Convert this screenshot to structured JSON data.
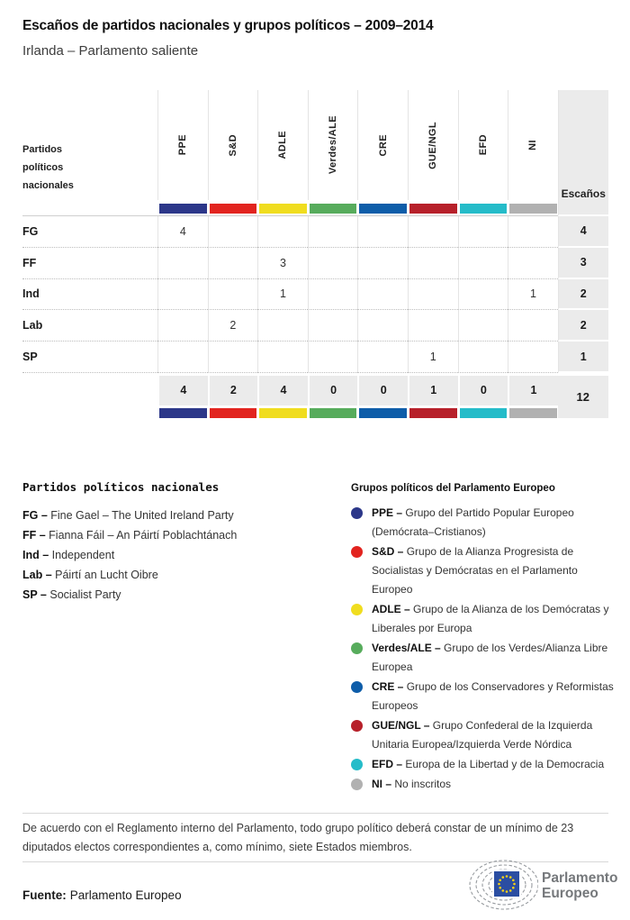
{
  "header": {
    "title": "Escaños de partidos nacionales y grupos políticos – 2009–2014",
    "subtitle": "Irlanda – Parlamento saliente"
  },
  "table": {
    "header_label": "Partidos políticos nacionales",
    "seats_label": "Escaños"
  },
  "chart_data": {
    "type": "table",
    "title": "Escaños de partidos nacionales y grupos políticos – 2009–2014",
    "subtitle": "Irlanda – Parlamento saliente",
    "groups": [
      {
        "code": "PPE",
        "color": "#2C3789"
      },
      {
        "code": "S&D",
        "color": "#E2241F"
      },
      {
        "code": "ADLE",
        "color": "#F0DD1F"
      },
      {
        "code": "Verdes/ALE",
        "color": "#57AC5C"
      },
      {
        "code": "CRE",
        "color": "#0E5DA9"
      },
      {
        "code": "GUE/NGL",
        "color": "#B7202A"
      },
      {
        "code": "EFD",
        "color": "#25BCC9"
      },
      {
        "code": "NI",
        "color": "#B1B1B1"
      }
    ],
    "rows": [
      {
        "party": "FG",
        "values": [
          4,
          null,
          null,
          null,
          null,
          null,
          null,
          null
        ],
        "total": 4
      },
      {
        "party": "FF",
        "values": [
          null,
          null,
          3,
          null,
          null,
          null,
          null,
          null
        ],
        "total": 3
      },
      {
        "party": "Ind",
        "values": [
          null,
          null,
          1,
          null,
          null,
          null,
          null,
          1
        ],
        "total": 2
      },
      {
        "party": "Lab",
        "values": [
          null,
          2,
          null,
          null,
          null,
          null,
          null,
          null
        ],
        "total": 2
      },
      {
        "party": "SP",
        "values": [
          null,
          null,
          null,
          null,
          null,
          1,
          null,
          null
        ],
        "total": 1
      }
    ],
    "totals": [
      4,
      2,
      4,
      0,
      0,
      1,
      0,
      1
    ],
    "grand_total": 12
  },
  "legend_parties": {
    "heading": "Partidos políticos nacionales",
    "items": [
      {
        "label": "FG –",
        "text": "Fine Gael – The United Ireland Party"
      },
      {
        "label": "FF –",
        "text": "Fianna Fáil – An Páirtí Poblachtánach"
      },
      {
        "label": "Ind –",
        "text": "Independent"
      },
      {
        "label": "Lab –",
        "text": "Páirtí an Lucht Oibre"
      },
      {
        "label": "SP –",
        "text": "Socialist Party"
      }
    ]
  },
  "legend_groups": {
    "heading": "Grupos políticos del Parlamento Europeo",
    "items": [
      {
        "label": "PPE –",
        "text": "Grupo del Partido Popular Europeo (Demócrata–Cristianos)"
      },
      {
        "label": "S&D –",
        "text": "Grupo de la Alianza Progresista de Socialistas y Demócratas en el Parlamento Europeo"
      },
      {
        "label": "ADLE –",
        "text": "Grupo de la Alianza de los Demócratas y Liberales por Europa"
      },
      {
        "label": "Verdes/ALE –",
        "text": "Grupo de los Verdes/Alianza Libre Europea"
      },
      {
        "label": "CRE –",
        "text": "Grupo de los Conservadores y Reformistas Europeos"
      },
      {
        "label": "GUE/NGL –",
        "text": "Grupo Confederal de la Izquierda Unitaria Europea/Izquierda Verde Nórdica"
      },
      {
        "label": "EFD –",
        "text": "Europa de la Libertad y de la Democracia"
      },
      {
        "label": "NI –",
        "text": "No inscritos"
      }
    ]
  },
  "footer": {
    "note": "De acuerdo con el Reglamento interno del Parlamento, todo grupo político deberá constar de un mínimo de 23 diputados electos correspondientes a, como mínimo, siete Estados miembros.",
    "source_label": "Fuente:",
    "source": "Parlamento Europeo",
    "logo_line1": "Parlamento",
    "logo_line2": "Europeo"
  }
}
